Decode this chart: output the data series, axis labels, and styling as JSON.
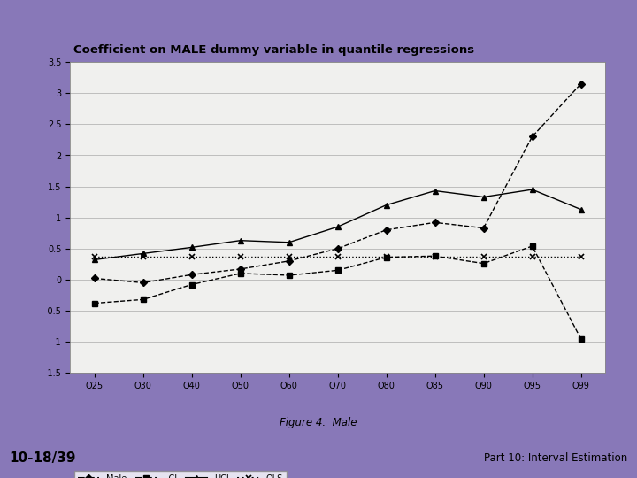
{
  "title": "Coefficient on MALE dummy variable in quantile regressions",
  "figure_caption": "Figure 4.  Male",
  "x_labels": [
    "Q25",
    "Q30",
    "Q40",
    "Q50",
    "Q60",
    "Q70",
    "Q80",
    "Q85",
    "Q90",
    "Q95",
    "Q99"
  ],
  "x_values": [
    1,
    2,
    3,
    4,
    5,
    6,
    7,
    8,
    9,
    10,
    11
  ],
  "ylim": [
    -1.5,
    3.5
  ],
  "yticks": [
    -1.5,
    -1.0,
    -0.5,
    0.0,
    0.5,
    1.0,
    1.5,
    2.0,
    2.5,
    3.0,
    3.5
  ],
  "ytick_labels": [
    "-1.5",
    "-1",
    "-0.5",
    "0",
    "0.5",
    "1",
    "1.5",
    "2",
    "2.5",
    "3",
    "3.5"
  ],
  "Male": [
    0.02,
    -0.05,
    0.08,
    0.17,
    0.3,
    0.5,
    0.8,
    0.92,
    0.83,
    2.3,
    3.15
  ],
  "LCI": [
    -0.38,
    -0.32,
    -0.08,
    0.1,
    0.07,
    0.15,
    0.36,
    0.38,
    0.26,
    0.54,
    -0.95
  ],
  "UCI": [
    0.32,
    0.42,
    0.52,
    0.63,
    0.6,
    0.85,
    1.2,
    1.43,
    1.33,
    1.45,
    1.13
  ],
  "OLS": [
    0.37,
    0.37,
    0.37,
    0.37,
    0.37,
    0.37,
    0.37,
    0.37,
    0.37,
    0.37,
    0.37
  ],
  "outer_bg": "#8878b8",
  "white_box_bg": "#f8f8f8",
  "plot_bg": "#f0f0ee",
  "footer_bg": "#c0b8d8",
  "slide_number": "10-18/39",
  "footer_text": "Part 10: Interval Estimation"
}
